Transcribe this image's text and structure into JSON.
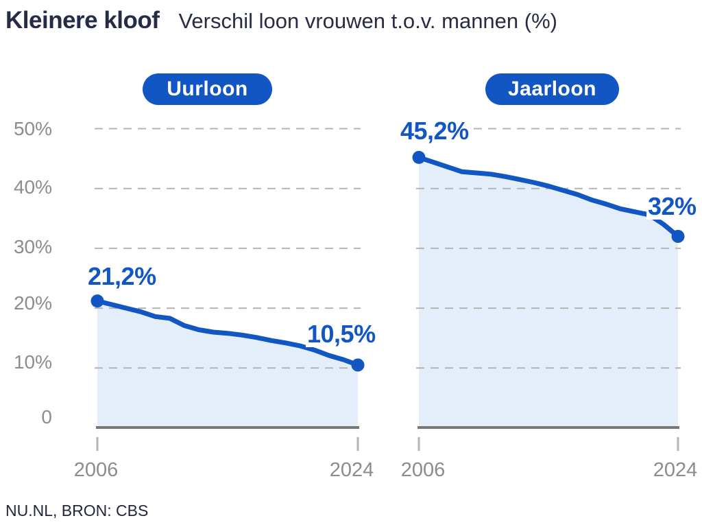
{
  "header": {
    "title": "Kleinere kloof",
    "subtitle": "Verschil loon vrouwen t.o.v. mannen (%)"
  },
  "source": "NU.NL, BRON: CBS",
  "colors": {
    "accent_blue": "#1156c3",
    "area_fill": "#e4eefa",
    "grid": "#b4b4b4",
    "axis": "#787878",
    "gray_text": "#8c8c8c",
    "navy_text": "#272b45"
  },
  "y_axis": {
    "labels": [
      "50%",
      "40%",
      "30%",
      "20%",
      "10%",
      "0"
    ]
  },
  "chart_data": [
    {
      "type": "area",
      "title": "Uurloon",
      "x": [
        2006,
        2007,
        2008,
        2009,
        2010,
        2011,
        2012,
        2013,
        2014,
        2015,
        2016,
        2017,
        2018,
        2019,
        2020,
        2021,
        2022,
        2023,
        2024
      ],
      "values": [
        21.2,
        20.6,
        20.0,
        19.4,
        18.6,
        18.3,
        17.1,
        16.4,
        16.0,
        15.8,
        15.5,
        15.1,
        14.6,
        14.2,
        13.7,
        13.0,
        12.1,
        11.4,
        10.5
      ],
      "gridlines": [
        10,
        20,
        30,
        40,
        50
      ],
      "ylim": [
        0,
        52
      ],
      "x_tick_labels": [
        "2006",
        "2024"
      ],
      "end_labels": {
        "start": "21,2%",
        "end": "10,5%"
      }
    },
    {
      "type": "area",
      "title": "Jaarloon",
      "x": [
        2006,
        2007,
        2008,
        2009,
        2010,
        2011,
        2012,
        2013,
        2014,
        2015,
        2016,
        2017,
        2018,
        2019,
        2020,
        2021,
        2022,
        2023,
        2024
      ],
      "values": [
        45.2,
        44.4,
        43.6,
        42.8,
        42.6,
        42.4,
        42.0,
        41.5,
        41.0,
        40.4,
        39.7,
        39.0,
        38.1,
        37.4,
        36.6,
        36.1,
        35.6,
        34.0,
        32.0
      ],
      "gridlines": [
        10,
        20,
        30,
        40,
        50
      ],
      "ylim": [
        0,
        52
      ],
      "x_tick_labels": [
        "2006",
        "2024"
      ],
      "end_labels": {
        "start": "45,2%",
        "end": "32%"
      }
    }
  ]
}
